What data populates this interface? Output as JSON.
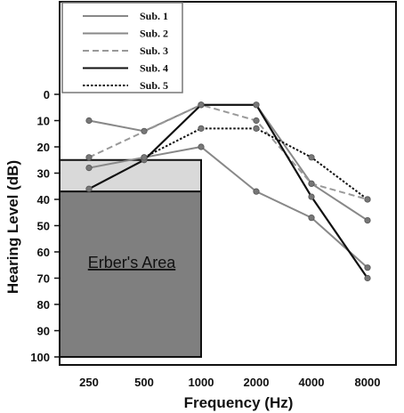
{
  "chart_data": {
    "type": "line",
    "xlabel": "Frequency (Hz)",
    "ylabel": "Hearing Level (dB)",
    "categories": [
      "250",
      "500",
      "1000",
      "2000",
      "4000",
      "8000"
    ],
    "yticks": [
      0,
      10,
      20,
      30,
      40,
      50,
      60,
      70,
      80,
      90,
      100
    ],
    "ylim": [
      0,
      100
    ],
    "y_inverted": true,
    "grid": false,
    "legend_position": "top-left",
    "region": {
      "label": "Erber's Area",
      "upper_band": {
        "x_from": "250",
        "x_to": "1000",
        "y_from": 25,
        "y_to": 37,
        "color": "#d9d9d9"
      },
      "lower_band": {
        "x_from": "250",
        "x_to": "1000",
        "y_from": 37,
        "y_to": 100,
        "color": "#7f7f7f"
      }
    },
    "series": [
      {
        "name": "Sub. 1",
        "values": [
          28,
          24,
          20,
          37,
          47,
          66
        ],
        "color": "#888888",
        "style": "solid",
        "markers": true
      },
      {
        "name": "Sub. 2",
        "values": [
          10,
          14,
          4,
          4,
          34,
          48
        ],
        "color": "#888888",
        "style": "solid",
        "markers": true
      },
      {
        "name": "Sub. 3",
        "values": [
          24,
          null,
          4,
          10,
          34,
          40
        ],
        "color": "#999999",
        "style": "dashed",
        "markers": true
      },
      {
        "name": "Sub. 4",
        "values": [
          36,
          25,
          4,
          4,
          39,
          70
        ],
        "color": "#111111",
        "style": "solid",
        "markers": true
      },
      {
        "name": "Sub. 5",
        "values": [
          null,
          24,
          13,
          13,
          24,
          40
        ],
        "color": "#111111",
        "style": "dotted",
        "markers": true
      }
    ]
  }
}
